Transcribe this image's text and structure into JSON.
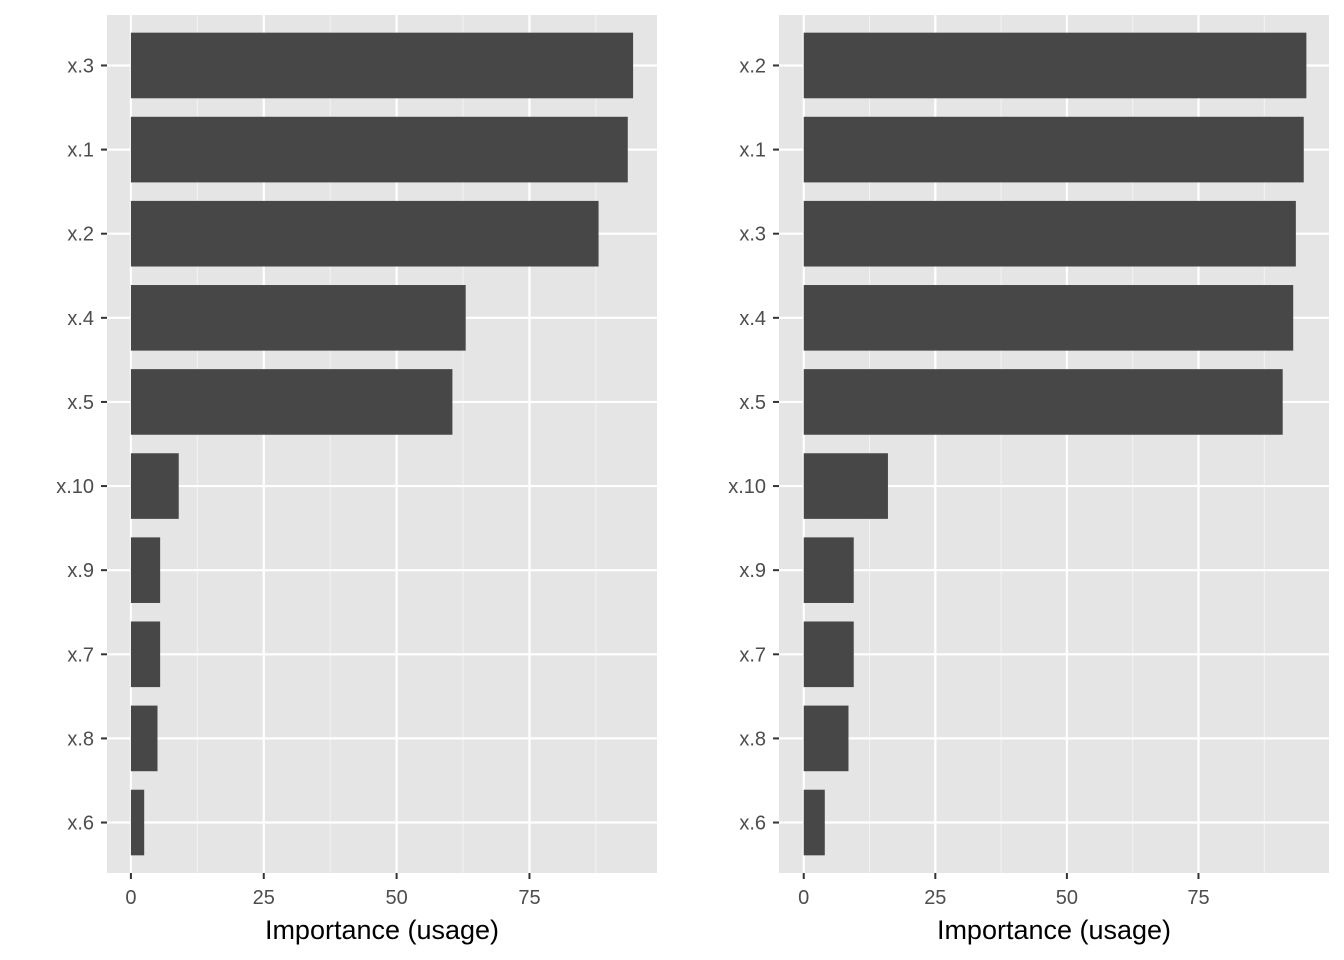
{
  "chart_data": [
    {
      "type": "bar",
      "orientation": "horizontal",
      "categories": [
        "x.3",
        "x.1",
        "x.2",
        "x.4",
        "x.5",
        "x.10",
        "x.9",
        "x.7",
        "x.8",
        "x.6"
      ],
      "values": [
        94.5,
        93.5,
        88,
        63,
        60.5,
        9,
        5.5,
        5.5,
        5,
        2.5
      ],
      "xlabel": "Importance (usage)",
      "ylabel": "",
      "xlim": [
        -4.5,
        99
      ],
      "xticks": [
        0,
        25,
        50,
        75
      ],
      "xtick_labels": [
        "0",
        "25",
        "50",
        "75"
      ],
      "grid": true,
      "bar_color": "#474747",
      "panel_color": "#e5e5e5"
    },
    {
      "type": "bar",
      "orientation": "horizontal",
      "categories": [
        "x.2",
        "x.1",
        "x.3",
        "x.4",
        "x.5",
        "x.10",
        "x.9",
        "x.7",
        "x.8",
        "x.6"
      ],
      "values": [
        95.5,
        95,
        93.5,
        93,
        91,
        16,
        9.5,
        9.5,
        8.5,
        4
      ],
      "xlabel": "Importance (usage)",
      "ylabel": "",
      "xlim": [
        -4.7,
        99.8
      ],
      "xticks": [
        0,
        25,
        50,
        75
      ],
      "xtick_labels": [
        "0",
        "25",
        "50",
        "75"
      ],
      "grid": true,
      "bar_color": "#474747",
      "panel_color": "#e5e5e5"
    }
  ]
}
